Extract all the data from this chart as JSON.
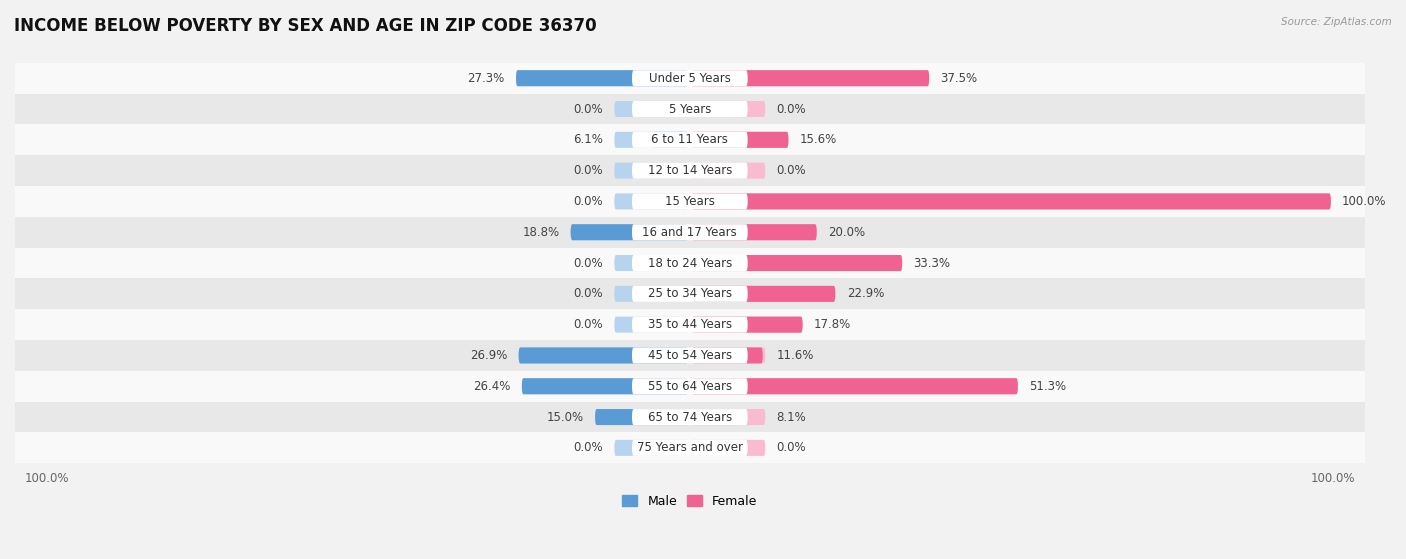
{
  "title": "INCOME BELOW POVERTY BY SEX AND AGE IN ZIP CODE 36370",
  "source": "Source: ZipAtlas.com",
  "categories": [
    "Under 5 Years",
    "5 Years",
    "6 to 11 Years",
    "12 to 14 Years",
    "15 Years",
    "16 and 17 Years",
    "18 to 24 Years",
    "25 to 34 Years",
    "35 to 44 Years",
    "45 to 54 Years",
    "55 to 64 Years",
    "65 to 74 Years",
    "75 Years and over"
  ],
  "male_values": [
    27.3,
    0.0,
    6.1,
    0.0,
    0.0,
    18.8,
    0.0,
    0.0,
    0.0,
    26.9,
    26.4,
    15.0,
    0.0
  ],
  "female_values": [
    37.5,
    0.0,
    15.6,
    0.0,
    100.0,
    20.0,
    33.3,
    22.9,
    17.8,
    11.6,
    51.3,
    8.1,
    0.0
  ],
  "male_color": "#5b9bd5",
  "female_color": "#f06292",
  "male_light_color": "#b8d3ee",
  "female_light_color": "#f8bbd0",
  "bar_height": 0.52,
  "background_color": "#f2f2f2",
  "row_bg_even": "#f9f9f9",
  "row_bg_odd": "#e8e8e8",
  "min_placeholder": 12,
  "xlim_left": -105,
  "xlim_right": 105,
  "legend_male_label": "Male",
  "legend_female_label": "Female",
  "title_fontsize": 12,
  "label_fontsize": 8.5,
  "category_fontsize": 8.5,
  "value_color": "#444444",
  "category_color": "#333333"
}
